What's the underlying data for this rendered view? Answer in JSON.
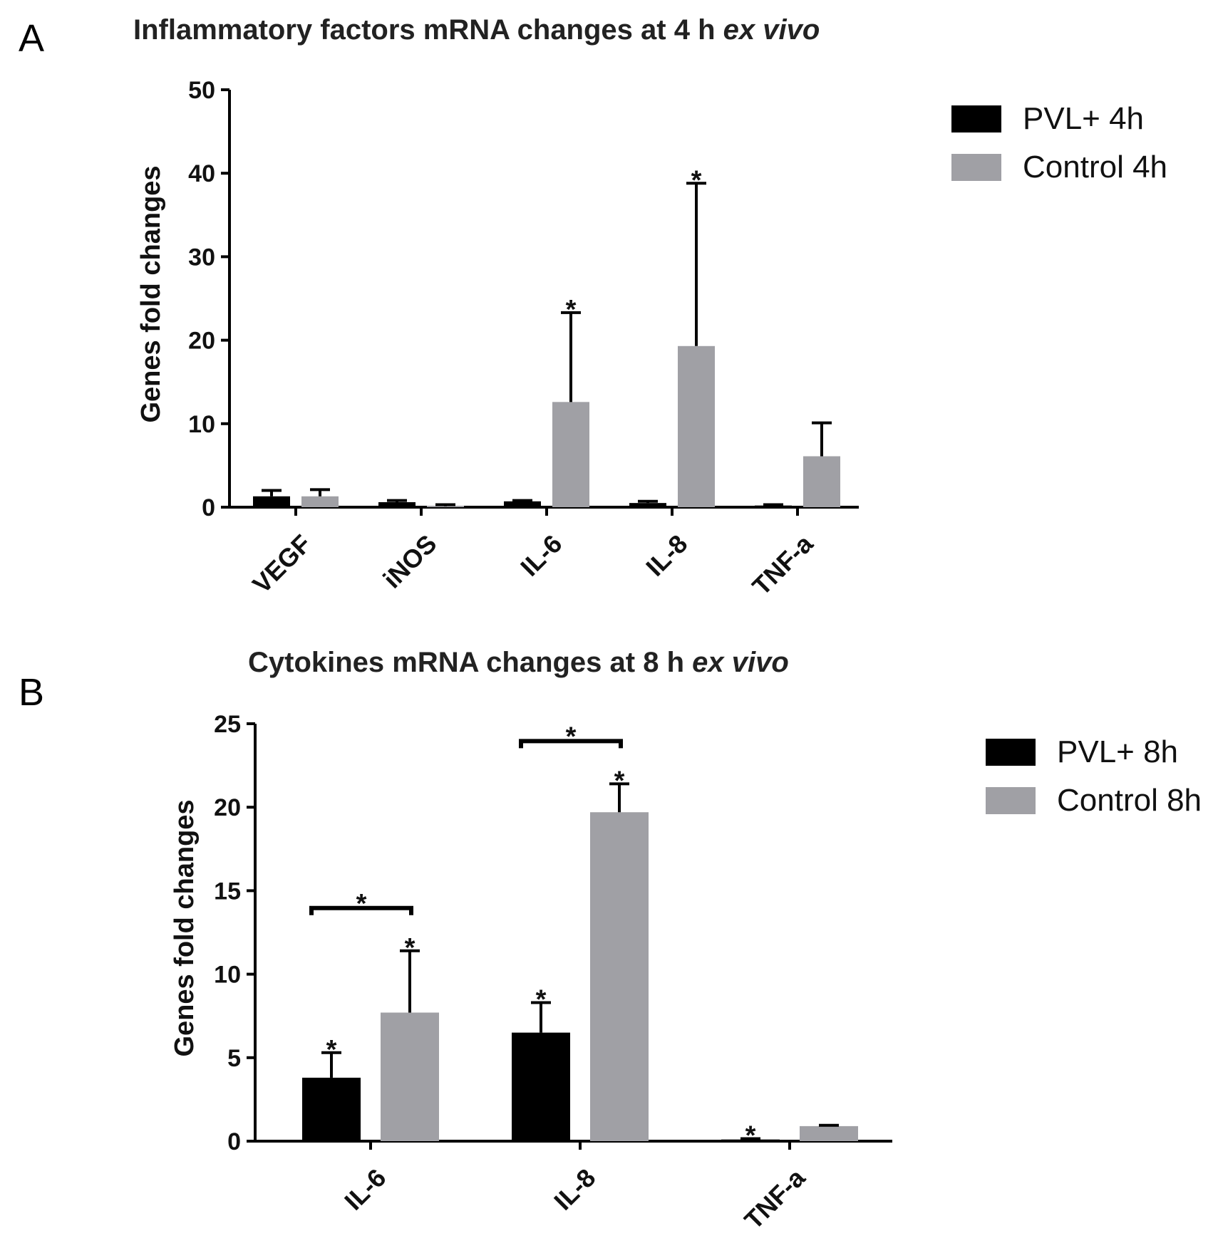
{
  "colors": {
    "pvl": "#000000",
    "control": "#a0a0a5",
    "axis": "#000000"
  },
  "chart_data": [
    {
      "panel": "A",
      "type": "bar",
      "title": "Inflammatory factors mRNA changes at 4 h ",
      "title_italic": "ex vivo",
      "ylabel": "Genes fold changes",
      "ylim": [
        0,
        50
      ],
      "yticks": [
        0,
        10,
        20,
        30,
        40,
        50
      ],
      "categories": [
        "VEGF",
        "iNOS",
        "IL-6",
        "IL-8",
        "TNF-a"
      ],
      "series": [
        {
          "name": "PVL+ 4h",
          "key": "pvl",
          "values": [
            1.3,
            0.6,
            0.7,
            0.5,
            0.2
          ],
          "errors": [
            0.7,
            0.2,
            0.1,
            0.2,
            0.1
          ],
          "stars": [
            false,
            false,
            false,
            false,
            false
          ]
        },
        {
          "name": "Control 4h",
          "key": "control",
          "values": [
            1.3,
            0.1,
            12.6,
            19.3,
            6.1
          ],
          "errors": [
            0.8,
            0.2,
            10.7,
            19.5,
            4.0
          ],
          "stars": [
            false,
            false,
            true,
            true,
            false
          ]
        }
      ],
      "brackets": []
    },
    {
      "panel": "B",
      "type": "bar",
      "title": "Cytokines mRNA  changes at 8 h ",
      "title_italic": "ex vivo",
      "ylabel": "Genes fold changes",
      "ylim": [
        0,
        25
      ],
      "yticks": [
        0,
        5,
        10,
        15,
        20,
        25
      ],
      "categories": [
        "IL-6",
        "IL-8",
        "TNF-a"
      ],
      "series": [
        {
          "name": "PVL+ 8h",
          "key": "pvl",
          "values": [
            3.8,
            6.5,
            0.1
          ],
          "errors": [
            1.5,
            1.8,
            0.05
          ],
          "stars": [
            true,
            true,
            true
          ]
        },
        {
          "name": "Control 8h",
          "key": "control",
          "values": [
            7.7,
            19.7,
            0.9
          ],
          "errors": [
            3.7,
            1.7,
            0.05
          ],
          "stars": [
            true,
            true,
            false
          ]
        }
      ],
      "brackets": [
        {
          "category_index": 0,
          "label": "*"
        },
        {
          "category_index": 1,
          "label": "*"
        }
      ]
    }
  ]
}
